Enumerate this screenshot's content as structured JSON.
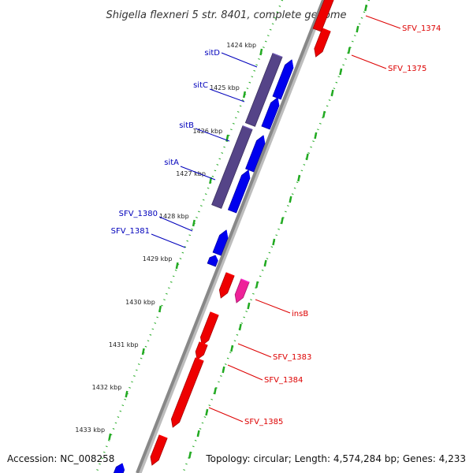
{
  "title": "Shigella flexneri 5 str. 8401, complete genome",
  "footer": {
    "accession": "Accession: NC_008258",
    "summary": "Topology: circular; Length: 4,574,284 bp; Genes: 4,233"
  },
  "colors": {
    "forward_gene": "#0000ee",
    "reverse_gene": "#ee0000",
    "insertion_element": "#ee2299",
    "operon": "#554488",
    "backbone": "#888888",
    "ticks": "#22aa22",
    "forward_label": "#0000bb",
    "reverse_label": "#dd0000"
  },
  "ruler_ticks": [
    {
      "label": "1424 kbp"
    },
    {
      "label": "1425 kbp"
    },
    {
      "label": "1426 kbp"
    },
    {
      "label": "1427 kbp"
    },
    {
      "label": "1428 kbp"
    },
    {
      "label": "1429 kbp"
    },
    {
      "label": "1430 kbp"
    },
    {
      "label": "1431 kbp"
    },
    {
      "label": "1432 kbp"
    },
    {
      "label": "1433 kbp"
    }
  ],
  "forward_labels": [
    {
      "name": "sitD"
    },
    {
      "name": "sitC"
    },
    {
      "name": "sitB"
    },
    {
      "name": "sitA"
    },
    {
      "name": "SFV_1380"
    },
    {
      "name": "SFV_1381"
    }
  ],
  "reverse_labels": [
    {
      "name": "SFV_1374"
    },
    {
      "name": "SFV_1375"
    },
    {
      "name": "insB"
    },
    {
      "name": "SFV_1383"
    },
    {
      "name": "SFV_1384"
    },
    {
      "name": "SFV_1385"
    }
  ]
}
